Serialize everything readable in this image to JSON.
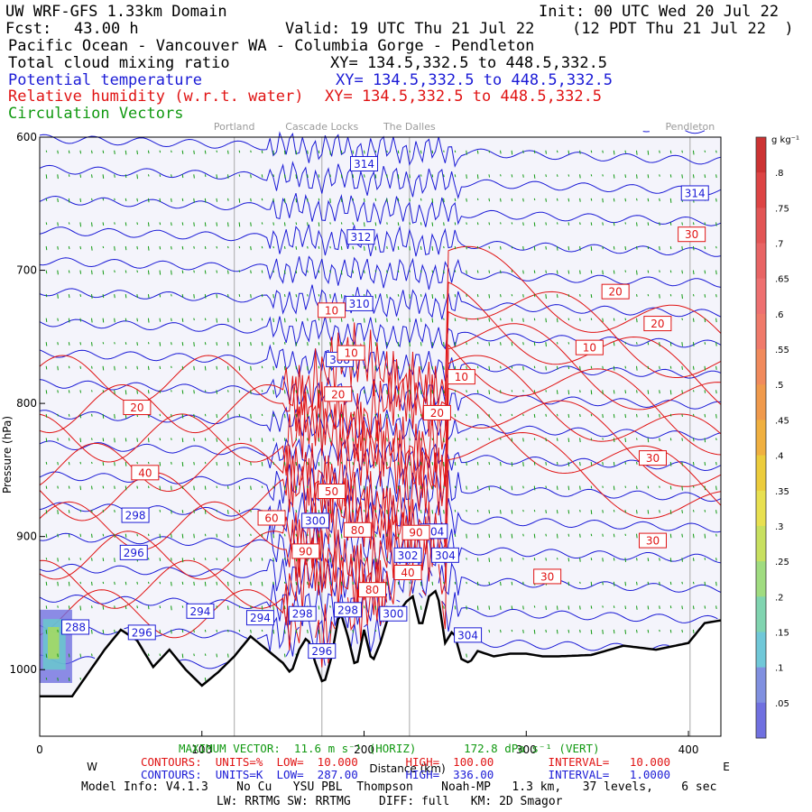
{
  "header": {
    "title": "UW WRF-GFS 1.33km Domain",
    "init": "Init: 00 UTC Wed 20 Jul 22",
    "fcst_label": "Fcst:",
    "fcst_value": "43.00 h",
    "valid": "Valid: 19 UTC Thu 21 Jul 22",
    "valid_local": "(12 PDT Thu 21 Jul 22  )",
    "region": "Pacific Ocean - Vancouver WA - Columbia Gorge - Pendleton",
    "field1": "Total cloud mixing ratio",
    "field1_xy": "XY= 134.5,332.5 to 448.5,332.5",
    "field2": "Potential temperature",
    "field2_xy": "XY= 134.5,332.5 to 448.5,332.5",
    "field3": "Relative humidity (w.r.t. water)",
    "field3_xy": "XY= 134.5,332.5 to 448.5,332.5",
    "field4": "Circulation Vectors"
  },
  "colors": {
    "theta": "#1b1bd6",
    "rh": "#e01414",
    "vectors": "#119911",
    "terrain": "#000000",
    "background": "#f4f4fb"
  },
  "footer": {
    "max_vector": "MAXIMUM VECTOR:  11.6 m s⁻¹ (HORIZ)       172.8 dPa s⁻¹ (VERT)",
    "contours_rh": "CONTOURS:  UNITS=%  LOW=  10.000       HIGH=  100.00        INTERVAL=   10.000",
    "contours_theta": "CONTOURS:  UNITS=K  LOW=  287.00       HIGH=  336.00        INTERVAL=   1.0000",
    "model_info": "Model Info: V4.1.3    No Cu   YSU PBL  Thompson    Noah-MP   1.3 km,   37 levels,    6 sec",
    "model_info2": "LW: RRTMG SW: RRTMG    DIFF: full   KM: 2D Smagor"
  },
  "chart_data": {
    "type": "cross-section",
    "xlabel": "Distance (km)",
    "ylabel": "Pressure (hPa)",
    "xlim": [
      0,
      420
    ],
    "ylim": [
      1050,
      600
    ],
    "x_ticks": [
      "0",
      "100",
      "200",
      "300",
      "400"
    ],
    "x_tick_values": [
      0,
      100,
      200,
      300,
      400
    ],
    "y_ticks": [
      "600",
      "700",
      "800",
      "900",
      "1000"
    ],
    "y_tick_values": [
      600,
      700,
      800,
      900,
      1000
    ],
    "left_end_label": "W",
    "right_end_label": "E",
    "locations": [
      {
        "name": "Portland",
        "x": 120
      },
      {
        "name": "Cascade Locks",
        "x": 174
      },
      {
        "name": "The Dalles",
        "x": 228
      },
      {
        "name": "Pendleton",
        "x": 401
      }
    ],
    "terrain_pressure_hPa": {
      "x": [
        0,
        20,
        40,
        50,
        60,
        70,
        80,
        90,
        100,
        110,
        120,
        130,
        140,
        150,
        155,
        160,
        165,
        170,
        175,
        180,
        185,
        190,
        195,
        200,
        205,
        210,
        215,
        220,
        225,
        230,
        235,
        240,
        245,
        250,
        255,
        260,
        265,
        270,
        280,
        290,
        300,
        310,
        320,
        340,
        360,
        380,
        400,
        410,
        420
      ],
      "p": [
        1020,
        1020,
        985,
        970,
        978,
        998,
        985,
        1000,
        1012,
        1002,
        990,
        975,
        985,
        995,
        1003,
        985,
        975,
        995,
        1012,
        990,
        955,
        975,
        1000,
        970,
        995,
        980,
        960,
        962,
        950,
        945,
        970,
        945,
        940,
        980,
        970,
        992,
        995,
        986,
        990,
        988,
        988,
        990,
        990,
        989,
        982,
        985,
        980,
        965,
        963
      ]
    },
    "theta_contour_labels": [
      {
        "value": 314,
        "x": 200,
        "p": 620
      },
      {
        "value": 314,
        "x": 404,
        "p": 642
      },
      {
        "value": 312,
        "x": 198,
        "p": 675
      },
      {
        "value": 310,
        "x": 197,
        "p": 725
      },
      {
        "value": 308,
        "x": 185,
        "p": 767
      },
      {
        "value": 304,
        "x": 243,
        "p": 896
      },
      {
        "value": 304,
        "x": 250,
        "p": 914
      },
      {
        "value": 302,
        "x": 227,
        "p": 914
      },
      {
        "value": 300,
        "x": 170,
        "p": 888
      },
      {
        "value": 300,
        "x": 218,
        "p": 958
      },
      {
        "value": 298,
        "x": 59,
        "p": 884
      },
      {
        "value": 296,
        "x": 58,
        "p": 912
      },
      {
        "value": 296,
        "x": 63,
        "p": 972
      },
      {
        "value": 296,
        "x": 174,
        "p": 986
      },
      {
        "value": 298,
        "x": 162,
        "p": 958
      },
      {
        "value": 298,
        "x": 190,
        "p": 955
      },
      {
        "value": 294,
        "x": 99,
        "p": 956
      },
      {
        "value": 294,
        "x": 136,
        "p": 961
      },
      {
        "value": 288,
        "x": 22,
        "p": 968
      },
      {
        "value": 304,
        "x": 264,
        "p": 974
      }
    ],
    "rh_contour_labels": [
      {
        "value": 30,
        "x": 402,
        "p": 673
      },
      {
        "value": 20,
        "x": 355,
        "p": 716
      },
      {
        "value": 20,
        "x": 381,
        "p": 740
      },
      {
        "value": 10,
        "x": 339,
        "p": 758
      },
      {
        "value": 10,
        "x": 180,
        "p": 730
      },
      {
        "value": 10,
        "x": 192,
        "p": 762
      },
      {
        "value": 10,
        "x": 260,
        "p": 780
      },
      {
        "value": 20,
        "x": 184,
        "p": 793
      },
      {
        "value": 20,
        "x": 245,
        "p": 807
      },
      {
        "value": 20,
        "x": 60,
        "p": 803
      },
      {
        "value": 30,
        "x": 378,
        "p": 841
      },
      {
        "value": 30,
        "x": 378,
        "p": 903
      },
      {
        "value": 30,
        "x": 313,
        "p": 930
      },
      {
        "value": 40,
        "x": 65,
        "p": 852
      },
      {
        "value": 50,
        "x": 180,
        "p": 866
      },
      {
        "value": 60,
        "x": 143,
        "p": 886
      },
      {
        "value": 80,
        "x": 196,
        "p": 895
      },
      {
        "value": 90,
        "x": 232,
        "p": 897
      },
      {
        "value": 40,
        "x": 227,
        "p": 927
      },
      {
        "value": 90,
        "x": 164,
        "p": 911
      },
      {
        "value": 80,
        "x": 205,
        "p": 940
      }
    ],
    "colorbar": {
      "units": "g kg⁻¹",
      "ticks": [
        ".8",
        ".75",
        ".7",
        ".65",
        ".6",
        ".55",
        ".5",
        ".45",
        ".4",
        ".35",
        ".3",
        ".25",
        ".2",
        ".15",
        ".1",
        ".05"
      ],
      "tick_values": [
        0.8,
        0.75,
        0.7,
        0.65,
        0.6,
        0.55,
        0.5,
        0.45,
        0.4,
        0.35,
        0.3,
        0.25,
        0.2,
        0.15,
        0.1,
        0.05
      ]
    }
  }
}
